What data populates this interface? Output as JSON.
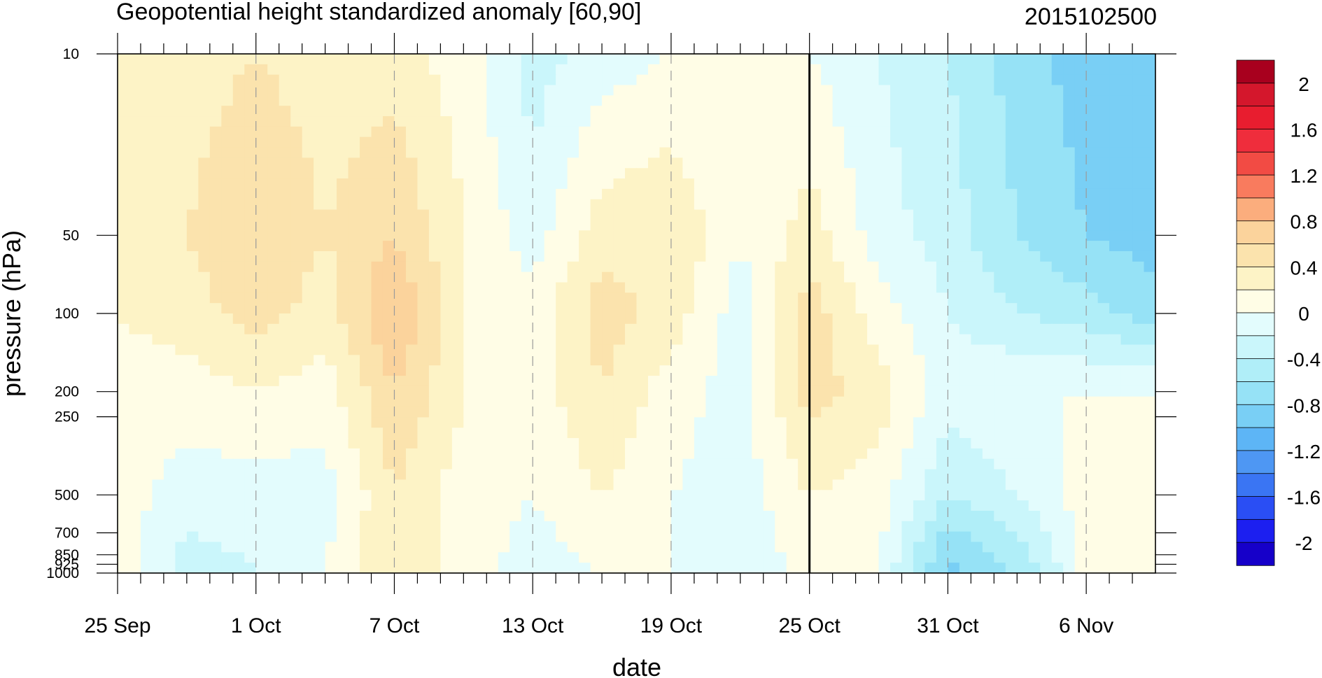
{
  "chart_data": {
    "type": "heatmap",
    "title": "Geopotential height standardized anomaly [60,90]",
    "date_label": "2015102500",
    "xlabel": "date",
    "ylabel": "pressure (hPa)",
    "x_tick_labels": [
      "25 Sep",
      "1 Oct",
      "7 Oct",
      "13 Oct",
      "19 Oct",
      "25 Oct",
      "31 Oct",
      "6 Nov"
    ],
    "x_tick_days": [
      0,
      6,
      12,
      18,
      24,
      30,
      36,
      42
    ],
    "x_range_days": [
      0,
      45
    ],
    "y_tick_values": [
      10,
      50,
      100,
      200,
      250,
      500,
      700,
      850,
      925,
      1000
    ],
    "y_tick_labels": [
      "10",
      "50",
      "100",
      "200",
      "250",
      "500",
      "700",
      "850",
      "925",
      "1000"
    ],
    "y_scale": "log",
    "y_range": [
      10,
      1000
    ],
    "y_reversed": true,
    "grid": "dashed vertical lines at date ticks",
    "reference_line": "25 Oct",
    "colorbar": {
      "levels": [
        -2.2,
        -2.0,
        -1.8,
        -1.6,
        -1.4,
        -1.2,
        -1.0,
        -0.8,
        -0.6,
        -0.4,
        -0.2,
        0,
        0.2,
        0.4,
        0.6,
        0.8,
        1.0,
        1.2,
        1.4,
        1.6,
        1.8,
        2.0,
        2.2
      ],
      "colors": [
        "#1600c9",
        "#1c1ff0",
        "#2a4ef4",
        "#3a75f3",
        "#4e97f3",
        "#5db5f6",
        "#79cff5",
        "#96e2f6",
        "#b0eef8",
        "#caf6fb",
        "#e3fcfd",
        "#fffde6",
        "#fdf3c6",
        "#fbe3ad",
        "#fbd39c",
        "#fbad7d",
        "#f97b5e",
        "#f24b44",
        "#ef2d3c",
        "#e81d2f",
        "#d4172c",
        "#a8001e"
      ],
      "tick_values": [
        2,
        1.6,
        1.2,
        0.8,
        0.4,
        0,
        -0.4,
        -0.8,
        -1.2,
        -1.6,
        -2
      ],
      "tick_labels": [
        "2",
        "1.6",
        "1.2",
        "0.8",
        "0.4",
        "0",
        "-0.4",
        "-0.8",
        "-1.2",
        "-1.6",
        "-2"
      ]
    },
    "field_days": [
      0,
      3,
      6,
      9,
      12,
      15,
      18,
      21,
      24,
      27,
      30,
      33,
      36,
      39,
      42,
      45
    ],
    "field_levels_hpa": [
      10,
      50,
      100,
      200,
      500,
      1000
    ],
    "field_values": [
      [
        0.2,
        0.3,
        0.4,
        0.3,
        0.3,
        0.1,
        -0.3,
        -0.1,
        0.0,
        0.0,
        0.0,
        -0.2,
        -0.4,
        -0.7,
        -0.9,
        -1.0
      ],
      [
        0.3,
        0.4,
        0.6,
        0.4,
        0.6,
        0.2,
        -0.1,
        0.3,
        0.4,
        0.0,
        0.3,
        -0.1,
        -0.3,
        -0.6,
        -0.8,
        -0.9
      ],
      [
        0.2,
        0.3,
        0.5,
        0.3,
        0.8,
        0.2,
        0.1,
        0.5,
        0.3,
        -0.1,
        0.5,
        0.1,
        -0.2,
        -0.4,
        -0.5,
        -0.7
      ],
      [
        0.1,
        0.1,
        0.2,
        0.1,
        0.6,
        0.2,
        0.1,
        0.4,
        0.1,
        -0.1,
        0.5,
        0.3,
        -0.1,
        0.0,
        0.0,
        0.0
      ],
      [
        0.1,
        -0.1,
        -0.1,
        -0.1,
        0.4,
        0.1,
        0.0,
        0.2,
        0.0,
        -0.1,
        0.2,
        0.1,
        -0.4,
        -0.2,
        0.1,
        0.05
      ],
      [
        0.1,
        -0.3,
        -0.2,
        0.0,
        0.4,
        0.1,
        -0.1,
        0.0,
        0.0,
        -0.2,
        0.1,
        0.0,
        -0.9,
        -0.6,
        0.05,
        0.05
      ]
    ]
  }
}
